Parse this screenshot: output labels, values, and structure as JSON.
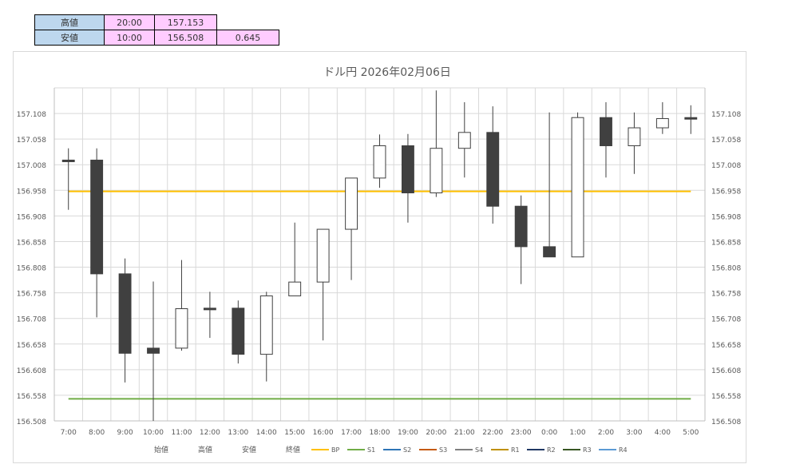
{
  "summary": {
    "rows": [
      {
        "label": "高値",
        "time": "20:00",
        "value": "157.153",
        "extra": ""
      },
      {
        "label": "安値",
        "time": "10:00",
        "value": "156.508",
        "extra": "0.645"
      }
    ]
  },
  "chart_data": {
    "type": "candlestick",
    "title": "ドル円  2026年02月06日",
    "categories": [
      "7:00",
      "8:00",
      "9:00",
      "10:00",
      "11:00",
      "12:00",
      "13:00",
      "14:00",
      "15:00",
      "16:00",
      "17:00",
      "18:00",
      "19:00",
      "20:00",
      "21:00",
      "22:00",
      "23:00",
      "0:00",
      "1:00",
      "2:00",
      "3:00",
      "4:00",
      "5:00"
    ],
    "candles": [
      {
        "open": 157.017,
        "high": 157.04,
        "low": 156.92,
        "close": 157.015
      },
      {
        "open": 157.017,
        "high": 157.04,
        "low": 156.71,
        "close": 156.795
      },
      {
        "open": 156.795,
        "high": 156.825,
        "low": 156.583,
        "close": 156.64
      },
      {
        "open": 156.65,
        "high": 156.78,
        "low": 156.508,
        "close": 156.64
      },
      {
        "open": 156.65,
        "high": 156.822,
        "low": 156.645,
        "close": 156.727
      },
      {
        "open": 156.728,
        "high": 156.76,
        "low": 156.67,
        "close": 156.726
      },
      {
        "open": 156.728,
        "high": 156.743,
        "low": 156.62,
        "close": 156.638
      },
      {
        "open": 156.638,
        "high": 156.76,
        "low": 156.585,
        "close": 156.752
      },
      {
        "open": 156.752,
        "high": 156.895,
        "low": 156.752,
        "close": 156.779
      },
      {
        "open": 156.779,
        "high": 156.882,
        "low": 156.665,
        "close": 156.882
      },
      {
        "open": 156.882,
        "high": 156.982,
        "low": 156.783,
        "close": 156.982
      },
      {
        "open": 156.982,
        "high": 157.067,
        "low": 156.963,
        "close": 157.045
      },
      {
        "open": 157.045,
        "high": 157.068,
        "low": 156.895,
        "close": 156.953
      },
      {
        "open": 156.953,
        "high": 157.153,
        "low": 156.945,
        "close": 157.04
      },
      {
        "open": 157.04,
        "high": 157.13,
        "low": 156.983,
        "close": 157.071
      },
      {
        "open": 157.071,
        "high": 157.122,
        "low": 156.893,
        "close": 156.927
      },
      {
        "open": 156.927,
        "high": 156.948,
        "low": 156.775,
        "close": 156.848
      },
      {
        "open": 156.848,
        "high": 157.11,
        "low": 156.828,
        "close": 156.828
      },
      {
        "open": 156.828,
        "high": 157.11,
        "low": 156.828,
        "close": 157.1
      },
      {
        "open": 157.1,
        "high": 157.13,
        "low": 156.983,
        "close": 157.045
      },
      {
        "open": 157.045,
        "high": 157.11,
        "low": 156.99,
        "close": 157.08
      },
      {
        "open": 157.08,
        "high": 157.13,
        "low": 157.068,
        "close": 157.098
      },
      {
        "open": 157.1,
        "high": 157.124,
        "low": 157.068,
        "close": 157.097
      }
    ],
    "levels": [
      {
        "name": "BP",
        "value": 156.956,
        "color": "#ffc000"
      },
      {
        "name": "S1",
        "value": 156.551,
        "color": "#70ad47"
      }
    ],
    "ylim": [
      156.508,
      157.158
    ],
    "yticks": [
      "156.508",
      "156.558",
      "156.608",
      "156.658",
      "156.708",
      "156.758",
      "156.808",
      "156.858",
      "156.908",
      "156.958",
      "157.008",
      "157.058",
      "157.108"
    ],
    "ytick_values": [
      156.508,
      156.558,
      156.608,
      156.658,
      156.708,
      156.758,
      156.808,
      156.858,
      156.908,
      156.958,
      157.008,
      157.058,
      157.108
    ],
    "grid": true,
    "legend_text": [
      "始値",
      "高値",
      "安値",
      "終値"
    ],
    "legend_series": [
      {
        "name": "BP",
        "color": "#ffc000"
      },
      {
        "name": "S1",
        "color": "#70ad47"
      },
      {
        "name": "S2",
        "color": "#2e75b6"
      },
      {
        "name": "S3",
        "color": "#c55a11"
      },
      {
        "name": "S4",
        "color": "#7f7f7f"
      },
      {
        "name": "R1",
        "color": "#bf9000"
      },
      {
        "name": "R2",
        "color": "#203864"
      },
      {
        "name": "R3",
        "color": "#375623"
      },
      {
        "name": "R4",
        "color": "#5b9bd5"
      }
    ],
    "legend_position": "bottom",
    "colors": {
      "bull_fill": "#ffffff",
      "bear_fill": "#404040",
      "stroke": "#404040",
      "grid": "#d9d9d9"
    }
  }
}
